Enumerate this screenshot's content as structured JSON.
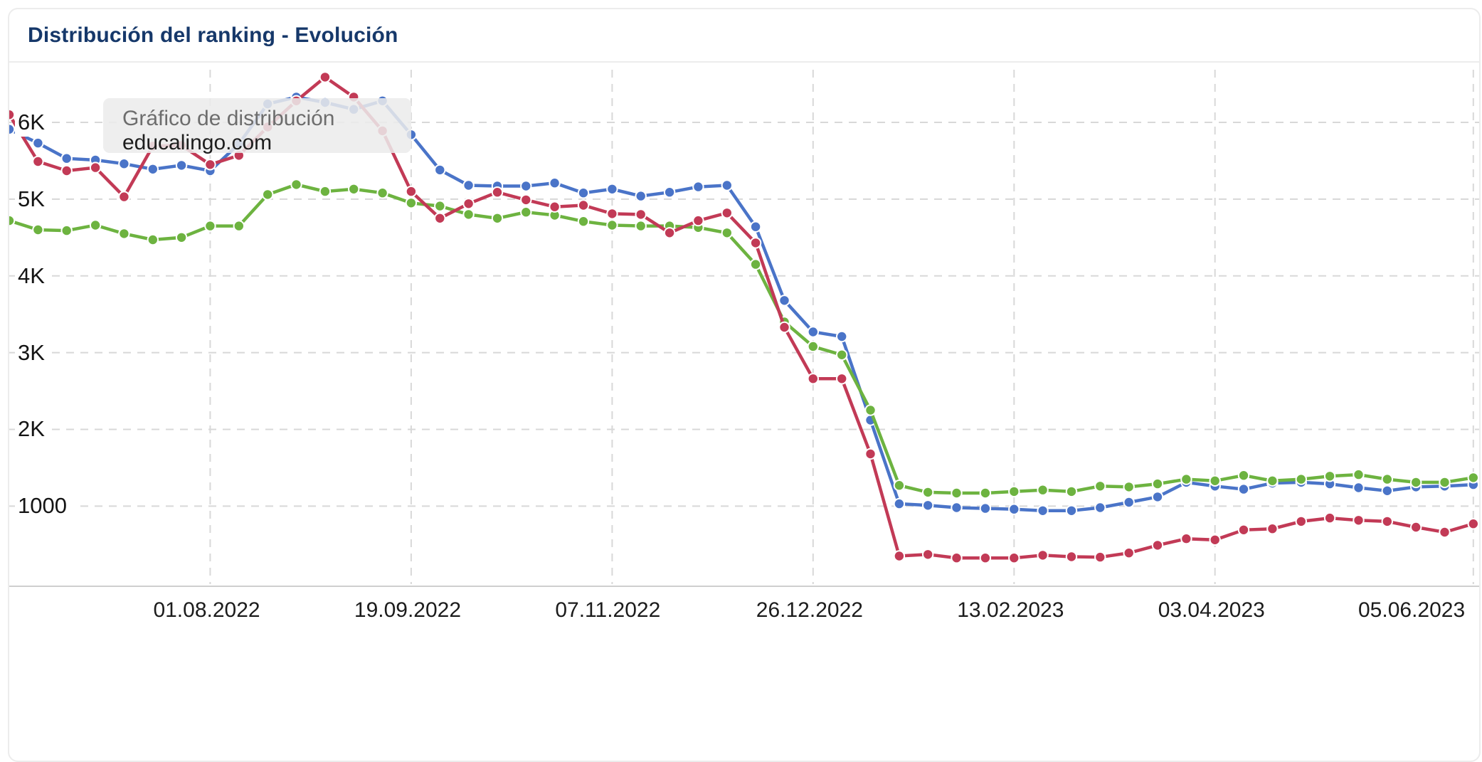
{
  "header": {
    "title": "Distribución del ranking - Evolución"
  },
  "tooltip": {
    "line1": "Gráfico de distribución",
    "line2": "educalingo.com"
  },
  "colors": {
    "title": "#16386a",
    "blue_series": "#4a74c8",
    "green_series": "#6db340",
    "red_series": "#c23a56",
    "gridline": "#d8d8d8",
    "axis_line": "#cfcfcf",
    "tooltip_bg": "#ebebeb"
  },
  "chart_data": {
    "type": "line",
    "title": "Distribución del ranking - Evolución",
    "xlabel": "",
    "ylabel": "",
    "x_unit": "weekly points",
    "x_range": [
      "13.06.2022",
      "05.06.2023"
    ],
    "grid": "dashed",
    "legend": "none",
    "ylim": [
      0,
      6780
    ],
    "x_ticks": [
      {
        "index": 7,
        "label": "01.08.2022"
      },
      {
        "index": 14,
        "label": "19.09.2022"
      },
      {
        "index": 21,
        "label": "07.11.2022"
      },
      {
        "index": 28,
        "label": "26.12.2022"
      },
      {
        "index": 35,
        "label": "13.02.2023"
      },
      {
        "index": 42,
        "label": "03.04.2023"
      },
      {
        "index": 51,
        "label": "05.06.2023"
      }
    ],
    "y_ticks": [
      {
        "value": 6000,
        "label": "6K"
      },
      {
        "value": 5000,
        "label": "5K"
      },
      {
        "value": 4000,
        "label": "4K"
      },
      {
        "value": 3000,
        "label": "3K"
      },
      {
        "value": 2000,
        "label": "2K"
      },
      {
        "value": 1000,
        "label": "1000"
      }
    ],
    "series": [
      {
        "name": "blue",
        "color": "#4a74c8",
        "values": [
          5910,
          5730,
          5530,
          5510,
          5460,
          5390,
          5440,
          5370,
          5720,
          6240,
          6330,
          6260,
          6170,
          6280,
          5840,
          5380,
          5180,
          5170,
          5170,
          5210,
          5080,
          5130,
          5040,
          5090,
          5160,
          5180,
          4640,
          3680,
          3270,
          3210,
          2120,
          1030,
          1010,
          980,
          970,
          960,
          940,
          940,
          980,
          1050,
          1120,
          1310,
          1260,
          1220,
          1300,
          1310,
          1290,
          1240,
          1200,
          1250,
          1260,
          1280
        ]
      },
      {
        "name": "green",
        "color": "#6db340",
        "values": [
          4720,
          4600,
          4590,
          4660,
          4550,
          4470,
          4500,
          4650,
          4650,
          5060,
          5190,
          5100,
          5130,
          5080,
          4950,
          4910,
          4800,
          4750,
          4830,
          4790,
          4710,
          4660,
          4650,
          4650,
          4630,
          4560,
          4150,
          3400,
          3080,
          2970,
          2250,
          1270,
          1180,
          1170,
          1170,
          1190,
          1210,
          1190,
          1260,
          1250,
          1290,
          1350,
          1330,
          1400,
          1330,
          1350,
          1390,
          1410,
          1350,
          1310,
          1310,
          1370
        ]
      },
      {
        "name": "red",
        "color": "#c23a56",
        "values": [
          6100,
          5490,
          5370,
          5410,
          5030,
          5690,
          5700,
          5450,
          5570,
          5940,
          6280,
          6590,
          6330,
          5890,
          5100,
          4750,
          4940,
          5090,
          4990,
          4900,
          4920,
          4810,
          4800,
          4560,
          4720,
          4820,
          4430,
          3330,
          2660,
          2660,
          1680,
          350,
          370,
          325,
          325,
          325,
          360,
          340,
          335,
          390,
          490,
          575,
          560,
          690,
          705,
          800,
          845,
          815,
          800,
          725,
          660,
          770
        ]
      }
    ]
  }
}
